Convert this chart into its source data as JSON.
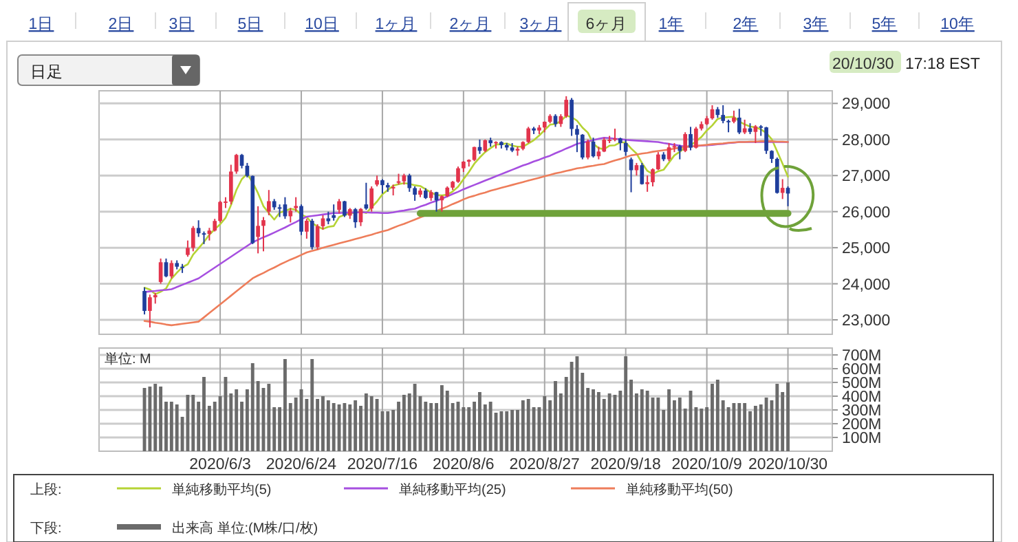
{
  "chart_data": [
    {
      "type": "candlestick",
      "categories": [
        null,
        null,
        null,
        null,
        null,
        null,
        null,
        null,
        null,
        null,
        null,
        null,
        null,
        null,
        "2020/6/3",
        null,
        null,
        null,
        null,
        null,
        null,
        null,
        null,
        null,
        null,
        null,
        null,
        null,
        null,
        "2020/6/24",
        null,
        null,
        null,
        null,
        null,
        null,
        null,
        null,
        null,
        null,
        null,
        null,
        null,
        null,
        "2020/7/16",
        null,
        null,
        null,
        null,
        null,
        null,
        null,
        null,
        null,
        null,
        null,
        null,
        null,
        null,
        "2020/8/6",
        null,
        null,
        null,
        null,
        null,
        null,
        null,
        null,
        null,
        null,
        null,
        null,
        null,
        null,
        "2020/8/27",
        null,
        null,
        null,
        null,
        null,
        null,
        null,
        null,
        null,
        null,
        null,
        null,
        null,
        null,
        "2020/9/18",
        null,
        null,
        null,
        null,
        null,
        null,
        null,
        null,
        null,
        null,
        null,
        null,
        null,
        null,
        "2020/10/9",
        null,
        null,
        null,
        null,
        null,
        null,
        null,
        null,
        null,
        null,
        null,
        null,
        null,
        null,
        "2020/10/30"
      ],
      "ohlc": [
        [
          23800,
          23900,
          23150,
          23248
        ],
        [
          23248,
          23700,
          22790,
          23625
        ],
        [
          23625,
          23750,
          23450,
          23685
        ],
        [
          24050,
          24700,
          24000,
          24597
        ],
        [
          24597,
          24700,
          24180,
          24207
        ],
        [
          24207,
          24650,
          24150,
          24575
        ],
        [
          24575,
          24650,
          24400,
          24474
        ],
        [
          24474,
          24550,
          24300,
          24465
        ],
        [
          24800,
          25200,
          24750,
          24995
        ],
        [
          24995,
          25600,
          24900,
          25548
        ],
        [
          25548,
          25760,
          25300,
          25400
        ],
        [
          25400,
          25450,
          25100,
          25383
        ],
        [
          25383,
          25550,
          25200,
          25475
        ],
        [
          25475,
          25800,
          25450,
          25742
        ],
        [
          25742,
          26300,
          25700,
          26270
        ],
        [
          26270,
          26400,
          26100,
          26281
        ],
        [
          26281,
          27300,
          26200,
          27111
        ],
        [
          27111,
          27600,
          27050,
          27572
        ],
        [
          27572,
          27600,
          27200,
          27272
        ],
        [
          27272,
          27350,
          26950,
          26990
        ],
        [
          26990,
          27000,
          25100,
          25128
        ],
        [
          25300,
          26150,
          24843,
          25606
        ],
        [
          25606,
          25850,
          24900,
          25763
        ],
        [
          26000,
          26600,
          25900,
          26290
        ],
        [
          26290,
          26350,
          26050,
          26120
        ],
        [
          26120,
          26200,
          25850,
          26080
        ],
        [
          26200,
          26400,
          25800,
          25871
        ],
        [
          25871,
          26100,
          25700,
          26025
        ],
        [
          26100,
          26400,
          26000,
          26156
        ],
        [
          26156,
          26200,
          25350,
          25445
        ],
        [
          25445,
          25800,
          25250,
          25746
        ],
        [
          25746,
          25800,
          24950,
          25016
        ],
        [
          25016,
          25650,
          24950,
          25596
        ],
        [
          25596,
          25900,
          25500,
          25813
        ],
        [
          25813,
          26000,
          25650,
          25735
        ],
        [
          25900,
          26200,
          25750,
          25827
        ],
        [
          26050,
          26350,
          25950,
          26287
        ],
        [
          26287,
          26300,
          25850,
          25890
        ],
        [
          25890,
          26100,
          25800,
          26067
        ],
        [
          26067,
          26100,
          25550,
          25706
        ],
        [
          25706,
          26100,
          25600,
          26075
        ],
        [
          26200,
          26800,
          26050,
          26086
        ],
        [
          26086,
          26700,
          26000,
          26643
        ],
        [
          26750,
          27000,
          26700,
          26870
        ],
        [
          26870,
          26900,
          26500,
          26735
        ],
        [
          26735,
          26800,
          26550,
          26672
        ],
        [
          26672,
          26750,
          26450,
          26681
        ],
        [
          26800,
          27050,
          26750,
          26840
        ],
        [
          26840,
          27050,
          26750,
          27005
        ],
        [
          27005,
          27050,
          26550,
          26652
        ],
        [
          26652,
          26700,
          26300,
          26470
        ],
        [
          26470,
          26650,
          26400,
          26584
        ],
        [
          26584,
          26650,
          26350,
          26379
        ],
        [
          26379,
          26600,
          26300,
          26540
        ],
        [
          26540,
          26550,
          26000,
          26314
        ],
        [
          26314,
          26450,
          26000,
          26428
        ],
        [
          26428,
          26700,
          26400,
          26665
        ],
        [
          26665,
          26850,
          26600,
          26828
        ],
        [
          26828,
          27250,
          26800,
          27202
        ],
        [
          27202,
          27400,
          27100,
          27386
        ],
        [
          27386,
          27450,
          27250,
          27433
        ],
        [
          27433,
          27800,
          27400,
          27791
        ],
        [
          27791,
          28000,
          27600,
          27686
        ],
        [
          27686,
          28000,
          27650,
          27977
        ],
        [
          27977,
          28050,
          27800,
          27897
        ],
        [
          27897,
          27950,
          27750,
          27931
        ],
        [
          27931,
          27950,
          27750,
          27845
        ],
        [
          27845,
          27900,
          27700,
          27778
        ],
        [
          27778,
          27900,
          27650,
          27692
        ],
        [
          27692,
          27800,
          27550,
          27740
        ],
        [
          27740,
          27950,
          27700,
          27930
        ],
        [
          27930,
          28350,
          27900,
          28308
        ],
        [
          28308,
          28350,
          28150,
          28249
        ],
        [
          28249,
          28400,
          28150,
          28332
        ],
        [
          28332,
          28500,
          28200,
          28492
        ],
        [
          28492,
          28700,
          28450,
          28654
        ],
        [
          28654,
          28700,
          28350,
          28430
        ],
        [
          28430,
          28700,
          28350,
          28646
        ],
        [
          28646,
          29200,
          28600,
          29100
        ],
        [
          29100,
          29150,
          28100,
          28292
        ],
        [
          28292,
          28400,
          27650,
          28133
        ],
        [
          28133,
          28150,
          27450,
          27501
        ],
        [
          27501,
          28000,
          27450,
          27940
        ],
        [
          27940,
          28050,
          27500,
          27535
        ],
        [
          27535,
          27800,
          27450,
          27666
        ],
        [
          27666,
          28050,
          27650,
          27993
        ],
        [
          27993,
          28100,
          27900,
          27995
        ],
        [
          27995,
          28300,
          27950,
          28032
        ],
        [
          28032,
          28050,
          27700,
          27902
        ],
        [
          27902,
          28000,
          27550,
          27657
        ],
        [
          27450,
          27500,
          26537,
          27148
        ],
        [
          27148,
          27350,
          27000,
          27288
        ],
        [
          27288,
          27350,
          26750,
          26763
        ],
        [
          26763,
          27000,
          26550,
          26815
        ],
        [
          26815,
          27200,
          26700,
          27174
        ],
        [
          27174,
          27650,
          27150,
          27584
        ],
        [
          27584,
          27650,
          27400,
          27452
        ],
        [
          27452,
          27900,
          27400,
          27782
        ],
        [
          27782,
          27900,
          27650,
          27817
        ],
        [
          27817,
          27850,
          27450,
          27683
        ],
        [
          27683,
          28200,
          27650,
          28149
        ],
        [
          28149,
          28350,
          27700,
          27773
        ],
        [
          27773,
          28350,
          27750,
          28303
        ],
        [
          28303,
          28500,
          28250,
          28426
        ],
        [
          28426,
          28650,
          28400,
          28587
        ],
        [
          28587,
          28950,
          28550,
          28838
        ],
        [
          28838,
          28900,
          28600,
          28680
        ],
        [
          28680,
          28950,
          28450,
          28515
        ],
        [
          28515,
          28550,
          28200,
          28494
        ],
        [
          28494,
          28800,
          28450,
          28606
        ],
        [
          28606,
          28850,
          28150,
          28195
        ],
        [
          28195,
          28550,
          28150,
          28309
        ],
        [
          28309,
          28450,
          28150,
          28211
        ],
        [
          28211,
          28400,
          27900,
          28364
        ],
        [
          28364,
          28400,
          28100,
          28336
        ],
        [
          28336,
          28350,
          27600,
          27685
        ],
        [
          27685,
          27700,
          27350,
          27463
        ],
        [
          27463,
          27500,
          26500,
          26520
        ],
        [
          26520,
          26900,
          26350,
          26659
        ],
        [
          26659,
          26700,
          26150,
          26502
        ]
      ],
      "series": [
        {
          "type": "line",
          "name": "単純移動平均(5)",
          "color": "#b5d334",
          "values": [
            23890,
            23840,
            23710,
            23780,
            23870,
            24140,
            24310,
            24460,
            24540,
            24810,
            24980,
            25160,
            25360,
            25510,
            25650,
            25830,
            26180,
            26600,
            26900,
            27050,
            26810,
            26510,
            26150,
            25960,
            25780,
            25970,
            26020,
            26080,
            26050,
            25920,
            25850,
            25680,
            25590,
            25520,
            25580,
            25600,
            25850,
            25910,
            25960,
            25960,
            26010,
            25960,
            26120,
            26280,
            26480,
            26600,
            26720,
            26760,
            26790,
            26770,
            26730,
            26710,
            26620,
            26530,
            26460,
            26450,
            26470,
            26560,
            26690,
            26900,
            27100,
            27330,
            27500,
            27650,
            27760,
            27860,
            27870,
            27890,
            27830,
            27800,
            27800,
            27890,
            27980,
            28110,
            28260,
            28410,
            28430,
            28510,
            28660,
            28620,
            28520,
            28330,
            28190,
            27880,
            27760,
            27730,
            27830,
            27840,
            27920,
            27920,
            27750,
            27610,
            27350,
            27130,
            27040,
            27120,
            27160,
            27360,
            27560,
            27660,
            27780,
            27840,
            27950,
            28070,
            28250,
            28390,
            28570,
            28610,
            28620,
            28630,
            28500,
            28420,
            28360,
            28340,
            28280,
            28180,
            28010,
            27670,
            27330,
            26970
          ]
        },
        {
          "type": "line",
          "name": "単純移動平均(25)",
          "color": "#a64fe0",
          "values": [
            23770,
            23790,
            23800,
            23820,
            23830,
            23850,
            23910,
            23970,
            24030,
            24090,
            24150,
            24250,
            24350,
            24450,
            24550,
            24650,
            24750,
            24850,
            24950,
            25050,
            25150,
            25220,
            25290,
            25350,
            25420,
            25490,
            25560,
            25640,
            25710,
            25790,
            25860,
            25880,
            25900,
            25920,
            25940,
            25960,
            25960,
            25970,
            25970,
            25980,
            25980,
            25980,
            25970,
            25970,
            25960,
            25960,
            25980,
            26010,
            26030,
            26060,
            26080,
            26140,
            26190,
            26250,
            26300,
            26360,
            26420,
            26490,
            26550,
            26620,
            26680,
            26740,
            26800,
            26860,
            26920,
            26980,
            27040,
            27100,
            27160,
            27220,
            27280,
            27330,
            27390,
            27440,
            27500,
            27550,
            27620,
            27680,
            27750,
            27810,
            27880,
            27910,
            27950,
            27980,
            28020,
            28050,
            28040,
            28020,
            28010,
            27990,
            27980,
            27970,
            27960,
            27950,
            27940,
            27930,
            27900,
            27880,
            27850,
            27830,
            27800,
            27810,
            27820,
            27830,
            27840,
            27850,
            27870,
            27880,
            27900,
            27910,
            27930,
            27930,
            27930,
            27930,
            27930,
            27930,
            27930,
            27930,
            27930,
            27930
          ]
        },
        {
          "type": "line",
          "name": "単純移動平均(50)",
          "color": "#ee7d5a",
          "values": [
            22970,
            22950,
            22920,
            22900,
            22870,
            22850,
            22870,
            22890,
            22910,
            22930,
            22950,
            23070,
            23190,
            23310,
            23430,
            23550,
            23670,
            23790,
            23910,
            24030,
            24150,
            24230,
            24300,
            24380,
            24450,
            24530,
            24600,
            24670,
            24730,
            24800,
            24870,
            24910,
            24950,
            25000,
            25040,
            25080,
            25120,
            25160,
            25200,
            25240,
            25280,
            25320,
            25360,
            25410,
            25450,
            25490,
            25550,
            25610,
            25660,
            25720,
            25780,
            25840,
            25900,
            25960,
            26020,
            26080,
            26140,
            26210,
            26270,
            26340,
            26400,
            26440,
            26490,
            26530,
            26580,
            26620,
            26660,
            26700,
            26740,
            26780,
            26820,
            26860,
            26900,
            26940,
            26980,
            27020,
            27060,
            27090,
            27130,
            27160,
            27200,
            27220,
            27250,
            27270,
            27300,
            27320,
            27370,
            27420,
            27460,
            27510,
            27560,
            27580,
            27610,
            27630,
            27660,
            27680,
            27700,
            27720,
            27750,
            27770,
            27790,
            27810,
            27820,
            27840,
            27850,
            27870,
            27880,
            27890,
            27910,
            27920,
            27930,
            27930,
            27940,
            27940,
            27950,
            27950,
            27950,
            27940,
            27940,
            27930
          ]
        },
        {
          "type": "line",
          "color": "#6fa23a",
          "values": [
            null,
            null,
            null,
            null,
            null,
            null,
            null,
            null,
            null,
            null,
            null,
            null,
            null,
            null,
            null,
            null,
            null,
            null,
            null,
            null,
            null,
            null,
            null,
            null,
            null,
            null,
            null,
            null,
            null,
            null,
            null,
            null,
            null,
            null,
            null,
            null,
            null,
            null,
            null,
            null,
            null,
            null,
            null,
            null,
            null,
            null,
            null,
            null,
            null,
            null,
            null,
            25950,
            25950,
            25950,
            25950,
            25950,
            25950,
            25950,
            25950,
            25950,
            25950,
            25950,
            25950,
            25950,
            25950,
            25950,
            25950,
            25950,
            25950,
            25950,
            25950,
            25950,
            25950,
            25950,
            25950,
            25950,
            25950,
            25950,
            25950,
            25950,
            25950,
            25950,
            25950,
            25950,
            25950,
            25950,
            25950,
            25950,
            25950,
            25950,
            25950,
            25950,
            25950,
            25950,
            25950,
            25950,
            25950,
            25950,
            25950,
            25950,
            25950,
            25950,
            25950,
            25950,
            25950,
            25950,
            25950,
            25950,
            25950,
            25950,
            25950,
            25950,
            25950,
            25950,
            25950,
            25950,
            25950,
            25950,
            25950,
            25950
          ]
        }
      ],
      "ylim": [
        22600,
        29350
      ],
      "yticks": [
        {
          "value": 23000,
          "label": "23,000"
        },
        {
          "value": 24000,
          "label": "24,000"
        },
        {
          "value": 25000,
          "label": "25,000"
        },
        {
          "value": 26000,
          "label": "26,000"
        },
        {
          "value": 27000,
          "label": "27,000"
        },
        {
          "value": 28000,
          "label": "28,000"
        },
        {
          "value": 29000,
          "label": "29,000"
        }
      ],
      "tick_labels": "y",
      "grid": true,
      "legend": "bottom",
      "legend_title": "上段:",
      "annotations": [
        "1日",
        "2日",
        "3日",
        "5日",
        "10日",
        "1ヶ月",
        "2ヶ月",
        "3ヶ月",
        "6ヶ月",
        "1年",
        "2年",
        "3年",
        "5年",
        "10年",
        "日足",
        "20/10/30",
        "17:18 EST"
      ]
    },
    {
      "type": "bar",
      "categories": [
        null,
        null,
        null,
        null,
        null,
        null,
        null,
        null,
        null,
        null,
        null,
        null,
        null,
        null,
        "2020/6/3",
        null,
        null,
        null,
        null,
        null,
        null,
        null,
        null,
        null,
        null,
        null,
        null,
        null,
        null,
        "2020/6/24",
        null,
        null,
        null,
        null,
        null,
        null,
        null,
        null,
        null,
        null,
        null,
        null,
        null,
        null,
        "2020/7/16",
        null,
        null,
        null,
        null,
        null,
        null,
        null,
        null,
        null,
        null,
        null,
        null,
        null,
        null,
        "2020/8/6",
        null,
        null,
        null,
        null,
        null,
        null,
        null,
        null,
        null,
        null,
        null,
        null,
        null,
        null,
        "2020/8/27",
        null,
        null,
        null,
        null,
        null,
        null,
        null,
        null,
        null,
        null,
        null,
        null,
        null,
        null,
        "2020/9/18",
        null,
        null,
        null,
        null,
        null,
        null,
        null,
        null,
        null,
        null,
        null,
        null,
        null,
        null,
        "2020/10/9",
        null,
        null,
        null,
        null,
        null,
        null,
        null,
        null,
        null,
        null,
        null,
        null,
        null,
        null,
        "2020/10/30"
      ],
      "series": [
        {
          "name": "出来高 単位:(M株/口/枚)",
          "color": "#6b6b6b",
          "values": [
            460,
            470,
            490,
            470,
            360,
            360,
            340,
            250,
            410,
            410,
            360,
            540,
            330,
            360,
            400,
            540,
            420,
            450,
            360,
            450,
            640,
            510,
            460,
            490,
            320,
            320,
            670,
            350,
            390,
            450,
            380,
            670,
            380,
            400,
            370,
            350,
            340,
            350,
            340,
            370,
            330,
            420,
            400,
            380,
            290,
            290,
            300,
            360,
            410,
            420,
            490,
            400,
            360,
            350,
            350,
            480,
            440,
            350,
            360,
            320,
            320,
            360,
            430,
            340,
            360,
            280,
            290,
            290,
            300,
            300,
            370,
            380,
            320,
            320,
            400,
            370,
            510,
            420,
            540,
            650,
            690,
            570,
            460,
            450,
            430,
            380,
            420,
            410,
            440,
            690,
            520,
            420,
            450,
            440,
            390,
            390,
            300,
            450,
            370,
            390,
            310,
            440,
            320,
            310,
            320,
            490,
            520,
            370,
            320,
            350,
            350,
            350,
            290,
            330,
            340,
            390,
            370,
            490,
            430,
            500
          ]
        }
      ],
      "ylim": [
        0,
        750
      ],
      "yticks": [
        {
          "value": 100,
          "label": "100M"
        },
        {
          "value": 200,
          "label": "200M"
        },
        {
          "value": 300,
          "label": "300M"
        },
        {
          "value": 400,
          "label": "400M"
        },
        {
          "value": 500,
          "label": "500M"
        },
        {
          "value": 600,
          "label": "600M"
        },
        {
          "value": 700,
          "label": "700M"
        }
      ],
      "grid": true,
      "legend": "bottom",
      "legend_title": "下段:",
      "annotations": [
        "単位: M"
      ]
    }
  ]
}
